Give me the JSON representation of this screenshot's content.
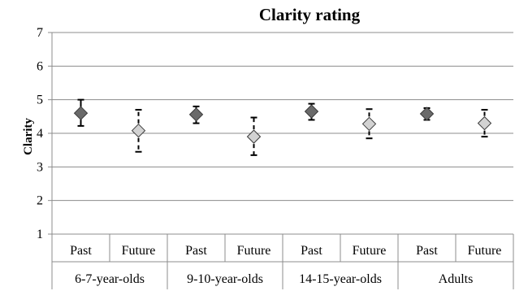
{
  "chart_data": {
    "type": "scatter",
    "title": "Clarity rating",
    "xlabel": "",
    "ylabel": "Clarity",
    "ylim": [
      1,
      7
    ],
    "yticks": [
      "1",
      "2",
      "3",
      "4",
      "5",
      "6",
      "7"
    ],
    "grid": true,
    "groups": [
      "6-7-year-olds",
      "9-10-year-olds",
      "14-15-year-olds",
      "Adults"
    ],
    "categories": [
      "Past",
      "Future",
      "Past",
      "Future",
      "Past",
      "Future",
      "Past",
      "Future"
    ],
    "points": [
      {
        "group": "6-7-year-olds",
        "category": "Past",
        "value": 4.6,
        "low": 4.22,
        "high": 5.0
      },
      {
        "group": "6-7-year-olds",
        "category": "Future",
        "value": 4.08,
        "low": 3.45,
        "high": 4.7
      },
      {
        "group": "9-10-year-olds",
        "category": "Past",
        "value": 4.56,
        "low": 4.3,
        "high": 4.8
      },
      {
        "group": "9-10-year-olds",
        "category": "Future",
        "value": 3.9,
        "low": 3.35,
        "high": 4.47
      },
      {
        "group": "14-15-year-olds",
        "category": "Past",
        "value": 4.65,
        "low": 4.4,
        "high": 4.88
      },
      {
        "group": "14-15-year-olds",
        "category": "Future",
        "value": 4.28,
        "low": 3.85,
        "high": 4.72
      },
      {
        "group": "Adults",
        "category": "Past",
        "value": 4.58,
        "low": 4.4,
        "high": 4.75
      },
      {
        "group": "Adults",
        "category": "Future",
        "value": 4.3,
        "low": 3.9,
        "high": 4.7
      }
    ],
    "colors": {
      "Past": "#6a6a6a",
      "Future": "#d2d2d2"
    }
  }
}
